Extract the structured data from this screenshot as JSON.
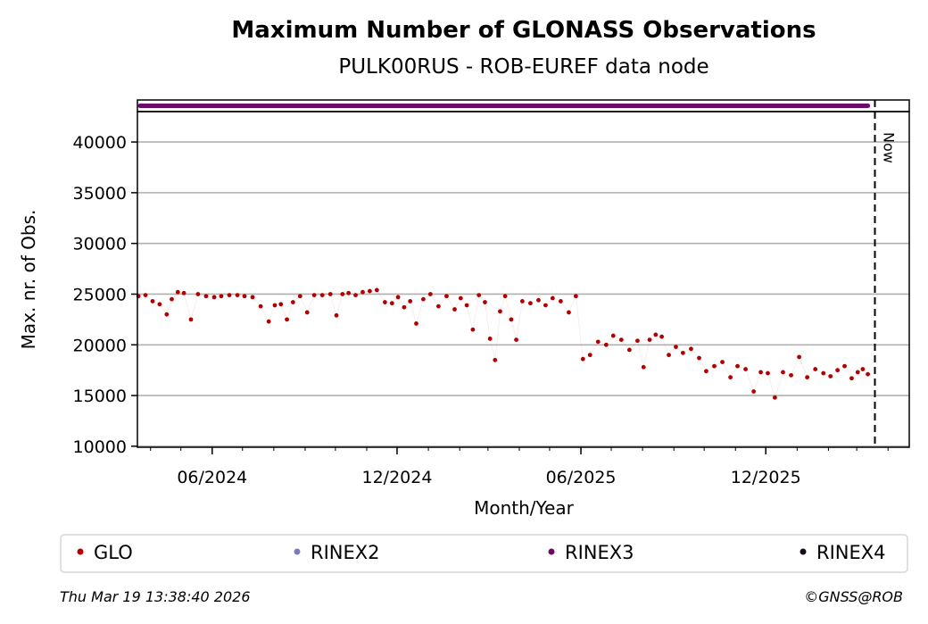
{
  "chart_data": {
    "type": "scatter",
    "title": "Maximum Number of GLONASS Observations",
    "subtitle": "PULK00RUS - ROB-EUREF data node",
    "xlabel": "Month/Year",
    "ylabel": "Max. nr. of Obs.",
    "xlim": [
      "2024-03-19",
      "2026-04-22"
    ],
    "ylim": [
      9900,
      43000
    ],
    "y_ticks": [
      10000,
      15000,
      20000,
      25000,
      30000,
      35000,
      40000
    ],
    "y_tick_labels": [
      "10000",
      "15000",
      "20000",
      "25000",
      "30000",
      "35000",
      "40000"
    ],
    "x_ticks": [
      "2024-06-01",
      "2024-12-01",
      "2025-06-01",
      "2025-12-01"
    ],
    "x_tick_labels": [
      "06/2024",
      "12/2024",
      "06/2025",
      "12/2025"
    ],
    "grid": "horizontal",
    "now_marker": {
      "date": "2026-03-19",
      "label": "Now"
    },
    "legend_position": "bottom",
    "legend": [
      {
        "name": "GLO",
        "color": "#b20000"
      },
      {
        "name": "RINEX2",
        "color": "#7b7bc0"
      },
      {
        "name": "RINEX3",
        "color": "#6b0a6b"
      },
      {
        "name": "RINEX4",
        "color": "#1a0a1a"
      }
    ],
    "rinex3_availability": [
      "2024-03-19",
      "2026-03-12"
    ],
    "series": [
      {
        "name": "GLO",
        "color": "#b20000",
        "x": [
          "2024-03-20",
          "2024-03-27",
          "2024-04-03",
          "2024-04-10",
          "2024-04-17",
          "2024-04-22",
          "2024-04-28",
          "2024-05-04",
          "2024-05-11",
          "2024-05-18",
          "2024-05-26",
          "2024-06-03",
          "2024-06-10",
          "2024-06-18",
          "2024-06-26",
          "2024-07-03",
          "2024-07-11",
          "2024-07-19",
          "2024-07-27",
          "2024-08-02",
          "2024-08-08",
          "2024-08-14",
          "2024-08-20",
          "2024-08-27",
          "2024-09-03",
          "2024-09-10",
          "2024-09-18",
          "2024-09-26",
          "2024-10-02",
          "2024-10-08",
          "2024-10-14",
          "2024-10-21",
          "2024-10-28",
          "2024-11-04",
          "2024-11-11",
          "2024-11-19",
          "2024-11-26",
          "2024-12-02",
          "2024-12-08",
          "2024-12-14",
          "2024-12-20",
          "2024-12-27",
          "2025-01-03",
          "2025-01-11",
          "2025-01-19",
          "2025-01-27",
          "2025-02-02",
          "2025-02-08",
          "2025-02-14",
          "2025-02-20",
          "2025-02-26",
          "2025-03-03",
          "2025-03-08",
          "2025-03-13",
          "2025-03-18",
          "2025-03-24",
          "2025-03-29",
          "2025-04-04",
          "2025-04-12",
          "2025-04-20",
          "2025-04-27",
          "2025-05-04",
          "2025-05-12",
          "2025-05-20",
          "2025-05-27",
          "2025-06-03",
          "2025-06-10",
          "2025-06-18",
          "2025-06-26",
          "2025-07-03",
          "2025-07-11",
          "2025-07-19",
          "2025-07-27",
          "2025-08-02",
          "2025-08-08",
          "2025-08-14",
          "2025-08-20",
          "2025-08-27",
          "2025-09-03",
          "2025-09-10",
          "2025-09-18",
          "2025-09-26",
          "2025-10-03",
          "2025-10-11",
          "2025-10-19",
          "2025-10-27",
          "2025-11-03",
          "2025-11-11",
          "2025-11-19",
          "2025-11-26",
          "2025-12-03",
          "2025-12-10",
          "2025-12-18",
          "2025-12-26",
          "2026-01-03",
          "2026-01-11",
          "2026-01-19",
          "2026-01-27",
          "2026-02-03",
          "2026-02-10",
          "2026-02-17",
          "2026-02-24",
          "2026-03-02",
          "2026-03-07",
          "2026-03-12"
        ],
        "y": [
          24800,
          24900,
          24300,
          24000,
          23000,
          24500,
          25200,
          25100,
          22500,
          25000,
          24800,
          24700,
          24800,
          24900,
          24900,
          24800,
          24700,
          23800,
          22300,
          23900,
          24000,
          22500,
          24200,
          24800,
          23200,
          24900,
          24900,
          25000,
          22900,
          25000,
          25100,
          24900,
          25200,
          25300,
          25400,
          24200,
          24100,
          24700,
          23700,
          24300,
          22100,
          24500,
          25000,
          23800,
          24800,
          23500,
          24600,
          23900,
          21500,
          24900,
          24200,
          20600,
          18500,
          23300,
          24800,
          22500,
          20500,
          24300,
          24100,
          24400,
          23900,
          24600,
          24300,
          23200,
          24800,
          18600,
          19000,
          20300,
          20000,
          20900,
          20500,
          19500,
          20400,
          17800,
          20500,
          21000,
          20800,
          19000,
          19800,
          19200,
          19600,
          18700,
          17400,
          17900,
          18300,
          16800,
          17900,
          17600,
          15400,
          17300,
          17200,
          14800,
          17300,
          17000,
          18800,
          16800,
          17600,
          17200,
          16900,
          17500,
          17900,
          16700,
          17300,
          17600,
          17100
        ]
      }
    ],
    "footer": {
      "timestamp": "Thu Mar 19 13:38:40 2026",
      "credit": "©GNSS@ROB"
    }
  }
}
